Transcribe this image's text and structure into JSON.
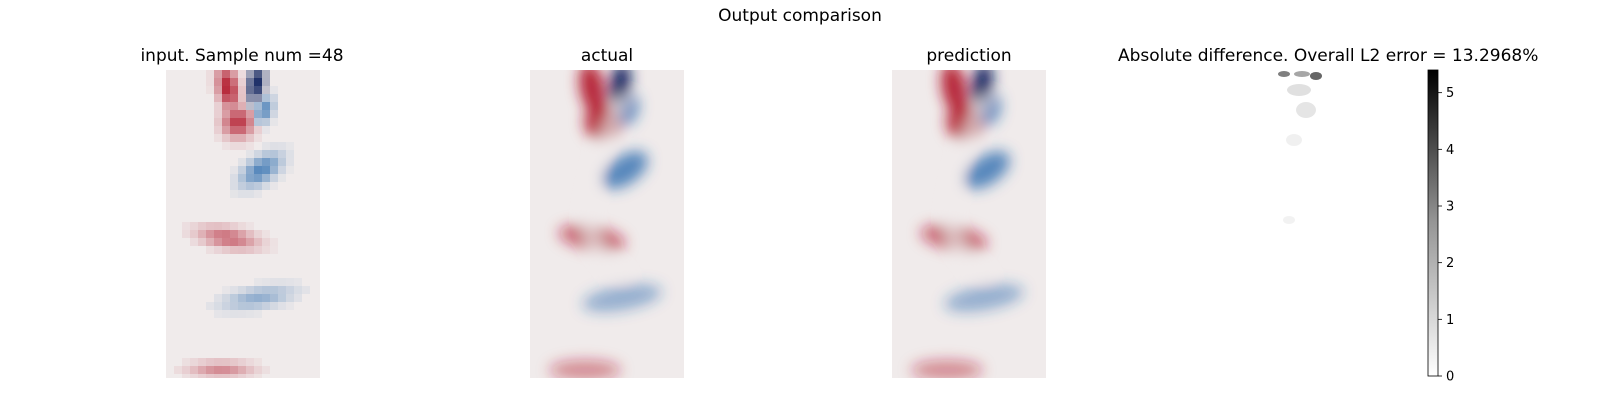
{
  "figure": {
    "suptitle": "Output comparison"
  },
  "chart_data": [
    {
      "type": "heatmap",
      "title": "input. Sample num =48",
      "resolution": "coarse",
      "colormap": "diverging red-white-blue"
    },
    {
      "type": "heatmap",
      "title": "actual",
      "resolution": "fine",
      "colormap": "diverging red-white-blue"
    },
    {
      "type": "heatmap",
      "title": "prediction",
      "resolution": "fine",
      "colormap": "diverging red-white-blue"
    },
    {
      "type": "heatmap",
      "title": "Absolute difference. Overall L2 error = 13.2968%",
      "colormap": "greys",
      "colorbar": {
        "range": [
          0,
          5.4
        ],
        "ticks": [
          0,
          1,
          2,
          3,
          4,
          5
        ],
        "tick_labels": [
          "0",
          "1",
          "2",
          "3",
          "4",
          "5"
        ]
      }
    }
  ],
  "colors": {
    "red": "#b2182b",
    "blue": "#2166ac",
    "navy": "#0b1f5c",
    "neutral": "#f0ebeb"
  }
}
